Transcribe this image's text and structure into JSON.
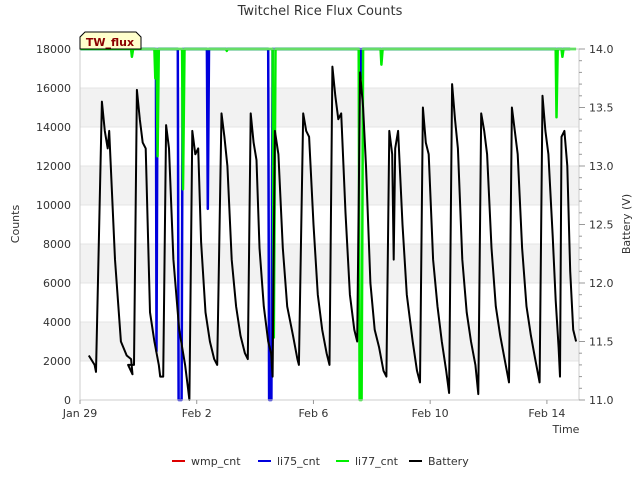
{
  "chart_data": {
    "type": "line",
    "title": "Twitchel Rice Flux Counts",
    "site_label": "TW_flux",
    "xlabel": "Time",
    "ylabel": "Counts",
    "ylabel_right": "Battery (V)",
    "xlim": [
      0,
      17.1
    ],
    "ylim": [
      0,
      18000
    ],
    "ylim_right": [
      11.0,
      14.0
    ],
    "x_ticks": [
      {
        "x": 0,
        "label": "Jan 29"
      },
      {
        "x": 4,
        "label": "Feb 2"
      },
      {
        "x": 8,
        "label": "Feb 6"
      },
      {
        "x": 12,
        "label": "Feb 10"
      },
      {
        "x": 16,
        "label": "Feb 14"
      }
    ],
    "y_ticks": [
      0,
      2000,
      4000,
      6000,
      8000,
      10000,
      12000,
      14000,
      16000,
      18000
    ],
    "y_ticks_right": [
      11.0,
      11.5,
      12.0,
      12.5,
      13.0,
      13.5,
      14.0
    ],
    "grid": "horizontal bands",
    "legend_position": "bottom",
    "series": [
      {
        "name": "wmp_cnt",
        "color": "#dd0000",
        "axis": "left",
        "points": []
      },
      {
        "name": "li75_cnt",
        "color": "#0000dd",
        "axis": "left",
        "points": [
          [
            0.0,
            18000
          ],
          [
            2.6,
            18000
          ],
          [
            2.62,
            2500
          ],
          [
            2.66,
            18000
          ],
          [
            3.35,
            18000
          ],
          [
            3.38,
            0
          ],
          [
            3.48,
            0
          ],
          [
            3.52,
            18000
          ],
          [
            4.35,
            18000
          ],
          [
            4.38,
            9800
          ],
          [
            4.42,
            18000
          ],
          [
            6.45,
            18000
          ],
          [
            6.48,
            0
          ],
          [
            6.56,
            0
          ],
          [
            6.6,
            18000
          ],
          [
            9.6,
            18000
          ],
          [
            9.62,
            16500
          ],
          [
            9.66,
            18000
          ],
          [
            16.8,
            18000
          ]
        ]
      },
      {
        "name": "li77_cnt",
        "color": "#00ee00",
        "axis": "left",
        "points": [
          [
            0.0,
            18000
          ],
          [
            1.75,
            18000
          ],
          [
            1.78,
            17600
          ],
          [
            1.82,
            18000
          ],
          [
            2.55,
            18000
          ],
          [
            2.58,
            16500
          ],
          [
            2.62,
            18000
          ],
          [
            2.66,
            12500
          ],
          [
            2.7,
            18000
          ],
          [
            3.5,
            18000
          ],
          [
            3.53,
            10800
          ],
          [
            3.58,
            18000
          ],
          [
            5.0,
            18000
          ],
          [
            5.03,
            17900
          ],
          [
            5.06,
            18000
          ],
          [
            6.6,
            18000
          ],
          [
            6.64,
            3200
          ],
          [
            6.7,
            18000
          ],
          [
            9.55,
            18000
          ],
          [
            9.58,
            0
          ],
          [
            9.65,
            0
          ],
          [
            9.7,
            18000
          ],
          [
            10.3,
            18000
          ],
          [
            10.33,
            17200
          ],
          [
            10.37,
            18000
          ],
          [
            16.3,
            18000
          ],
          [
            16.33,
            14500
          ],
          [
            16.37,
            18000
          ],
          [
            16.5,
            18000
          ],
          [
            16.53,
            17600
          ],
          [
            16.57,
            18000
          ],
          [
            17.0,
            18000
          ]
        ]
      },
      {
        "name": "Battery",
        "color": "#000000",
        "axis": "right",
        "points": [
          [
            0.3,
            11.38
          ],
          [
            0.5,
            11.3
          ],
          [
            0.55,
            11.24
          ],
          [
            0.75,
            13.55
          ],
          [
            0.85,
            13.3
          ],
          [
            0.95,
            13.15
          ],
          [
            1.0,
            13.3
          ],
          [
            1.2,
            12.2
          ],
          [
            1.4,
            11.5
          ],
          [
            1.6,
            11.38
          ],
          [
            1.75,
            11.35
          ],
          [
            1.8,
            11.22
          ],
          [
            1.65,
            11.3
          ],
          [
            1.85,
            11.3
          ],
          [
            1.95,
            13.65
          ],
          [
            2.05,
            13.4
          ],
          [
            2.15,
            13.2
          ],
          [
            2.25,
            13.15
          ],
          [
            2.4,
            11.75
          ],
          [
            2.55,
            11.5
          ],
          [
            2.7,
            11.3
          ],
          [
            2.75,
            11.2
          ],
          [
            2.85,
            11.2
          ],
          [
            2.95,
            13.35
          ],
          [
            3.05,
            13.15
          ],
          [
            3.2,
            12.2
          ],
          [
            3.4,
            11.6
          ],
          [
            3.6,
            11.3
          ],
          [
            3.7,
            11.1
          ],
          [
            3.75,
            11.0
          ],
          [
            3.85,
            13.3
          ],
          [
            3.95,
            13.1
          ],
          [
            4.05,
            13.15
          ],
          [
            4.15,
            12.35
          ],
          [
            4.3,
            11.75
          ],
          [
            4.45,
            11.5
          ],
          [
            4.6,
            11.35
          ],
          [
            4.7,
            11.3
          ],
          [
            4.85,
            13.45
          ],
          [
            4.95,
            13.25
          ],
          [
            5.05,
            13.0
          ],
          [
            5.2,
            12.2
          ],
          [
            5.35,
            11.8
          ],
          [
            5.5,
            11.55
          ],
          [
            5.65,
            11.4
          ],
          [
            5.75,
            11.35
          ],
          [
            5.85,
            13.45
          ],
          [
            5.95,
            13.2
          ],
          [
            6.05,
            13.05
          ],
          [
            6.15,
            12.3
          ],
          [
            6.3,
            11.8
          ],
          [
            6.45,
            11.5
          ],
          [
            6.55,
            11.4
          ],
          [
            6.6,
            11.2
          ],
          [
            6.68,
            13.3
          ],
          [
            6.8,
            13.1
          ],
          [
            6.95,
            12.3
          ],
          [
            7.1,
            11.8
          ],
          [
            7.3,
            11.55
          ],
          [
            7.45,
            11.35
          ],
          [
            7.5,
            11.3
          ],
          [
            7.65,
            13.45
          ],
          [
            7.75,
            13.3
          ],
          [
            7.85,
            13.25
          ],
          [
            8.0,
            12.5
          ],
          [
            8.15,
            11.9
          ],
          [
            8.3,
            11.6
          ],
          [
            8.45,
            11.4
          ],
          [
            8.55,
            11.3
          ],
          [
            8.65,
            13.85
          ],
          [
            8.75,
            13.6
          ],
          [
            8.85,
            13.4
          ],
          [
            8.95,
            13.45
          ],
          [
            9.1,
            12.6
          ],
          [
            9.25,
            11.9
          ],
          [
            9.4,
            11.6
          ],
          [
            9.5,
            11.5
          ],
          [
            9.6,
            13.8
          ],
          [
            9.7,
            13.5
          ],
          [
            9.8,
            13.0
          ],
          [
            9.95,
            12.0
          ],
          [
            10.1,
            11.6
          ],
          [
            10.25,
            11.45
          ],
          [
            10.4,
            11.25
          ],
          [
            10.5,
            11.2
          ],
          [
            10.6,
            13.3
          ],
          [
            10.7,
            13.1
          ],
          [
            10.75,
            12.2
          ],
          [
            10.8,
            13.15
          ],
          [
            10.9,
            13.3
          ],
          [
            11.05,
            12.5
          ],
          [
            11.2,
            11.9
          ],
          [
            11.4,
            11.5
          ],
          [
            11.55,
            11.25
          ],
          [
            11.65,
            11.15
          ],
          [
            11.75,
            13.5
          ],
          [
            11.85,
            13.2
          ],
          [
            11.95,
            13.1
          ],
          [
            12.1,
            12.2
          ],
          [
            12.25,
            11.8
          ],
          [
            12.4,
            11.5
          ],
          [
            12.55,
            11.25
          ],
          [
            12.65,
            11.06
          ],
          [
            12.75,
            13.7
          ],
          [
            12.85,
            13.4
          ],
          [
            12.95,
            13.15
          ],
          [
            13.1,
            12.2
          ],
          [
            13.25,
            11.75
          ],
          [
            13.4,
            11.5
          ],
          [
            13.55,
            11.3
          ],
          [
            13.65,
            11.05
          ],
          [
            13.75,
            13.45
          ],
          [
            13.85,
            13.3
          ],
          [
            13.95,
            13.1
          ],
          [
            14.1,
            12.3
          ],
          [
            14.25,
            11.8
          ],
          [
            14.4,
            11.55
          ],
          [
            14.55,
            11.35
          ],
          [
            14.7,
            11.15
          ],
          [
            14.8,
            13.5
          ],
          [
            14.9,
            13.3
          ],
          [
            15.0,
            13.1
          ],
          [
            15.15,
            12.3
          ],
          [
            15.3,
            11.8
          ],
          [
            15.45,
            11.55
          ],
          [
            15.6,
            11.35
          ],
          [
            15.75,
            11.15
          ],
          [
            15.85,
            13.6
          ],
          [
            15.95,
            13.3
          ],
          [
            16.05,
            13.1
          ],
          [
            16.2,
            12.4
          ],
          [
            16.3,
            11.85
          ],
          [
            16.4,
            11.45
          ],
          [
            16.45,
            11.2
          ],
          [
            16.5,
            13.25
          ],
          [
            16.6,
            13.3
          ],
          [
            16.7,
            13.0
          ],
          [
            16.8,
            12.1
          ],
          [
            16.9,
            11.6
          ],
          [
            17.0,
            11.5
          ]
        ]
      }
    ]
  }
}
